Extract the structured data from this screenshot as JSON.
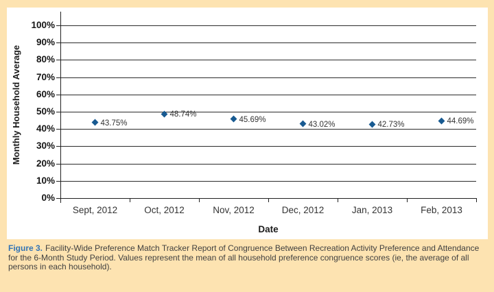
{
  "colors": {
    "background": "#fde3b1",
    "panel": "#ffffff",
    "marker": "#185a91",
    "grid": "#2a2a2a",
    "axis": "#1f1f1f",
    "figure_label_blue": "#3374b5",
    "caption_text": "#3f3f3f"
  },
  "chart_data": {
    "type": "scatter",
    "title": "",
    "categories": [
      "Sept, 2012",
      "Oct, 2012",
      "Nov, 2012",
      "Dec, 2012",
      "Jan, 2013",
      "Feb, 2013"
    ],
    "values": [
      43.75,
      48.74,
      45.69,
      43.02,
      42.73,
      44.69
    ],
    "point_labels": [
      "43.75%",
      "48.74%",
      "45.69%",
      "43.02%",
      "42.73%",
      "44.69%"
    ],
    "xlabel": "Date",
    "ylabel": "Monthly Household Average",
    "ylim": [
      0,
      100
    ],
    "yticks": [
      0,
      10,
      20,
      30,
      40,
      50,
      60,
      70,
      80,
      90,
      100
    ],
    "ytick_labels": [
      "0%",
      "10%",
      "20%",
      "30%",
      "40%",
      "50%",
      "60%",
      "70%",
      "80%",
      "90%",
      "100%"
    ],
    "grid": "horizontal",
    "legend": "none",
    "marker": "diamond"
  },
  "caption": {
    "figure_label": "Figure 3.",
    "lines": [
      "Facility-Wide Preference Match Tracker Report of Congruence Between Recreation Activity Preference and Attendance",
      "for the 6-Month Study Period. Values represent the mean of all household preference congruence scores (ie, the average of all",
      "persons in each household)."
    ]
  }
}
